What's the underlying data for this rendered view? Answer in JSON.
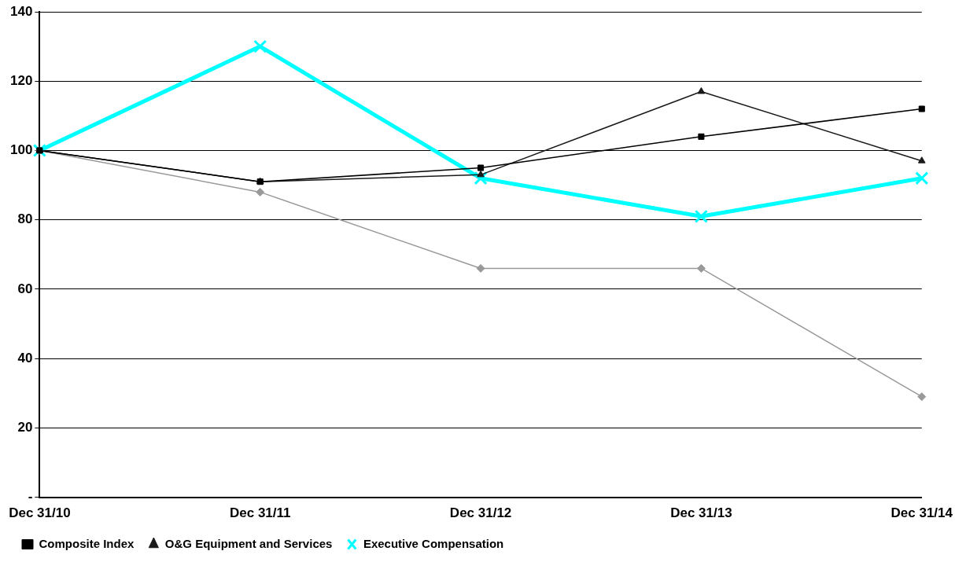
{
  "chart_data": {
    "type": "line",
    "categories": [
      "Dec 31/10",
      "Dec 31/11",
      "Dec 31/12",
      "Dec 31/13",
      "Dec 31/14"
    ],
    "series": [
      {
        "name": "Composite Index",
        "color": "#000000",
        "marker": "square",
        "values": [
          100,
          91,
          95,
          104,
          112
        ]
      },
      {
        "name": "O&G Equipment and Services",
        "color": "#1a1a1a",
        "marker": "triangle",
        "values": [
          100,
          91,
          93,
          117,
          97
        ]
      },
      {
        "name": "Executive Compensation",
        "color": "#00ffff",
        "marker": "cross",
        "values": [
          100,
          130,
          92,
          81,
          92
        ]
      },
      {
        "color": "#999999",
        "marker": "diamond",
        "values": [
          100,
          88,
          66,
          66,
          29
        ]
      }
    ],
    "ylim": [
      0,
      140
    ],
    "yticks": [
      {
        "value": 0,
        "label": "-"
      },
      20,
      40,
      60,
      80,
      100,
      120,
      140
    ],
    "grid": "y",
    "legend": "bottom left",
    "line_style": "solid"
  }
}
